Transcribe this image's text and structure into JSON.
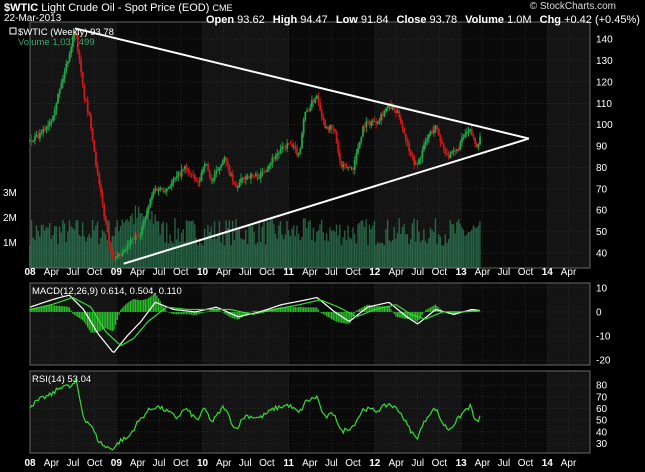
{
  "header": {
    "symbol": "$WTIC",
    "name": "Light Crude Oil - Spot Price (EOD)",
    "exchange": "CME",
    "date": "22-Mar-2013",
    "brand": "© StockCharts.com",
    "ohlc": [
      {
        "label": "Open",
        "value": "93.62"
      },
      {
        "label": "High",
        "value": "94.47"
      },
      {
        "label": "Low",
        "value": "91.84"
      },
      {
        "label": "Close",
        "value": "93.78"
      },
      {
        "label": "Volume",
        "value": "1.0M"
      },
      {
        "label": "Chg",
        "value": "+0.42 (+0.45%)"
      }
    ]
  },
  "colors": {
    "background": "#000000",
    "panel": "#0a0a0a",
    "grid": "#3a3a3a",
    "price_up": "#1fa84a",
    "price_down": "#d01818",
    "volume": "#3aa870",
    "indicator": "#33dd33",
    "trendline": "#ffffff",
    "text": "#ffffff"
  },
  "x_labels": [
    "08",
    "Apr",
    "Jul",
    "Oct",
    "09",
    "Apr",
    "Jul",
    "Oct",
    "10",
    "Apr",
    "Jul",
    "Oct",
    "11",
    "Apr",
    "Jul",
    "Oct",
    "12",
    "Apr",
    "Jul",
    "Oct",
    "13",
    "Apr",
    "Jul",
    "Oct",
    "14",
    "Apr"
  ],
  "chart_data": [
    {
      "panel": "price",
      "type": "candlestick",
      "legend": [
        "$WTIC (Weekly) 93.78",
        "Volume 1,037,499"
      ],
      "ylim": [
        33,
        148
      ],
      "y_ticks": [
        "40",
        "50",
        "60",
        "70",
        "80",
        "90",
        "100",
        "110",
        "120",
        "130",
        "140"
      ],
      "volume_ticks": [
        "1M",
        "2M",
        "3M"
      ],
      "price_path": [
        [
          "2008-01-01",
          92
        ],
        [
          "2008-02-15",
          95
        ],
        [
          "2008-04-01",
          103
        ],
        [
          "2008-05-15",
          120
        ],
        [
          "2008-06-15",
          133
        ],
        [
          "2008-07-10",
          145
        ],
        [
          "2008-08-15",
          115
        ],
        [
          "2008-09-15",
          100
        ],
        [
          "2008-10-15",
          75
        ],
        [
          "2008-11-15",
          55
        ],
        [
          "2008-12-20",
          36
        ],
        [
          "2009-02-01",
          40
        ],
        [
          "2009-03-01",
          45
        ],
        [
          "2009-04-15",
          50
        ],
        [
          "2009-06-10",
          70
        ],
        [
          "2009-08-01",
          70
        ],
        [
          "2009-10-20",
          80
        ],
        [
          "2009-12-15",
          72
        ],
        [
          "2010-01-10",
          83
        ],
        [
          "2010-02-10",
          73
        ],
        [
          "2010-04-01",
          85
        ],
        [
          "2010-05-20",
          70
        ],
        [
          "2010-07-01",
          76
        ],
        [
          "2010-09-01",
          76
        ],
        [
          "2010-11-01",
          85
        ],
        [
          "2010-12-31",
          91
        ],
        [
          "2011-02-15",
          86
        ],
        [
          "2011-03-07",
          104
        ],
        [
          "2011-05-01",
          114
        ],
        [
          "2011-06-01",
          100
        ],
        [
          "2011-07-15",
          97
        ],
        [
          "2011-08-10",
          80
        ],
        [
          "2011-10-01",
          80
        ],
        [
          "2011-11-15",
          100
        ],
        [
          "2012-01-10",
          102
        ],
        [
          "2012-03-01",
          109
        ],
        [
          "2012-04-15",
          104
        ],
        [
          "2012-05-15",
          92
        ],
        [
          "2012-06-25",
          80
        ],
        [
          "2012-08-15",
          95
        ],
        [
          "2012-09-15",
          99
        ],
        [
          "2012-10-15",
          90
        ],
        [
          "2012-11-10",
          85
        ],
        [
          "2012-12-15",
          88
        ],
        [
          "2013-01-15",
          95
        ],
        [
          "2013-02-10",
          97
        ],
        [
          "2013-03-05",
          90
        ],
        [
          "2013-03-22",
          93.78
        ]
      ],
      "trendlines": [
        {
          "from": [
            "2008-07-10",
            145
          ],
          "to": [
            "2013-10-15",
            93.5
          ]
        },
        {
          "from": [
            "2009-02-01",
            35
          ],
          "to": [
            "2013-10-15",
            93.5
          ]
        }
      ]
    },
    {
      "panel": "macd",
      "type": "line",
      "legend": "MACD(12,26,9) 0.614, 0.504, 0.110",
      "ylim": [
        -22,
        12
      ],
      "y_ticks": [
        "-20",
        "-10",
        "0",
        "10"
      ],
      "macd": [
        [
          "2008-01-01",
          2
        ],
        [
          "2008-04-01",
          5
        ],
        [
          "2008-06-15",
          7
        ],
        [
          "2008-08-15",
          1
        ],
        [
          "2008-10-15",
          -9
        ],
        [
          "2008-12-20",
          -17
        ],
        [
          "2009-02-15",
          -10
        ],
        [
          "2009-04-15",
          -4
        ],
        [
          "2009-06-15",
          4
        ],
        [
          "2009-09-01",
          1
        ],
        [
          "2009-12-01",
          0
        ],
        [
          "2010-03-01",
          2
        ],
        [
          "2010-06-01",
          -2
        ],
        [
          "2010-09-01",
          0
        ],
        [
          "2010-12-01",
          3
        ],
        [
          "2011-03-15",
          5
        ],
        [
          "2011-05-01",
          6
        ],
        [
          "2011-07-15",
          0
        ],
        [
          "2011-09-15",
          -4
        ],
        [
          "2011-12-01",
          2
        ],
        [
          "2012-03-01",
          4
        ],
        [
          "2012-05-15",
          -2
        ],
        [
          "2012-07-01",
          -5
        ],
        [
          "2012-09-15",
          1
        ],
        [
          "2012-12-01",
          -1
        ],
        [
          "2013-02-15",
          1
        ],
        [
          "2013-03-22",
          0.6
        ]
      ],
      "signal": [
        [
          "2008-01-01",
          1
        ],
        [
          "2008-04-01",
          3
        ],
        [
          "2008-07-01",
          6
        ],
        [
          "2008-09-15",
          2
        ],
        [
          "2008-11-15",
          -8
        ],
        [
          "2009-01-20",
          -14
        ],
        [
          "2009-03-15",
          -11
        ],
        [
          "2009-05-15",
          -4
        ],
        [
          "2009-08-01",
          2
        ],
        [
          "2009-11-01",
          1
        ],
        [
          "2010-02-01",
          1
        ],
        [
          "2010-05-01",
          1
        ],
        [
          "2010-08-01",
          -1
        ],
        [
          "2010-11-01",
          1
        ],
        [
          "2011-02-15",
          3
        ],
        [
          "2011-05-15",
          5
        ],
        [
          "2011-08-01",
          2
        ],
        [
          "2011-10-15",
          -2
        ],
        [
          "2012-01-01",
          1
        ],
        [
          "2012-04-01",
          3
        ],
        [
          "2012-06-01",
          -1
        ],
        [
          "2012-08-01",
          -3
        ],
        [
          "2012-10-15",
          0
        ],
        [
          "2013-01-01",
          0
        ],
        [
          "2013-03-22",
          0.5
        ]
      ]
    },
    {
      "panel": "rsi",
      "type": "line",
      "legend": "RSI(14) 53.04",
      "ylim": [
        22,
        92
      ],
      "y_ticks": [
        "30",
        "40",
        "50",
        "60",
        "70",
        "80"
      ],
      "rsi": [
        [
          "2008-01-01",
          62
        ],
        [
          "2008-02-15",
          68
        ],
        [
          "2008-04-01",
          72
        ],
        [
          "2008-05-20",
          80
        ],
        [
          "2008-06-20",
          78
        ],
        [
          "2008-07-15",
          83
        ],
        [
          "2008-08-15",
          52
        ],
        [
          "2008-09-15",
          46
        ],
        [
          "2008-10-15",
          33
        ],
        [
          "2008-11-15",
          27
        ],
        [
          "2008-12-20",
          26
        ],
        [
          "2009-01-20",
          33
        ],
        [
          "2009-02-20",
          35
        ],
        [
          "2009-04-01",
          48
        ],
        [
          "2009-05-15",
          58
        ],
        [
          "2009-06-20",
          62
        ],
        [
          "2009-08-01",
          58
        ],
        [
          "2009-09-15",
          52
        ],
        [
          "2009-10-20",
          60
        ],
        [
          "2009-12-10",
          50
        ],
        [
          "2010-01-10",
          60
        ],
        [
          "2010-02-10",
          48
        ],
        [
          "2010-04-01",
          62
        ],
        [
          "2010-05-20",
          42
        ],
        [
          "2010-07-01",
          54
        ],
        [
          "2010-09-01",
          52
        ],
        [
          "2010-11-01",
          60
        ],
        [
          "2010-12-31",
          63
        ],
        [
          "2011-02-15",
          56
        ],
        [
          "2011-03-15",
          66
        ],
        [
          "2011-05-01",
          70
        ],
        [
          "2011-06-01",
          52
        ],
        [
          "2011-07-15",
          56
        ],
        [
          "2011-08-10",
          40
        ],
        [
          "2011-10-01",
          45
        ],
        [
          "2011-11-15",
          60
        ],
        [
          "2012-01-10",
          58
        ],
        [
          "2012-03-01",
          64
        ],
        [
          "2012-04-15",
          58
        ],
        [
          "2012-05-20",
          45
        ],
        [
          "2012-06-25",
          34
        ],
        [
          "2012-08-15",
          55
        ],
        [
          "2012-09-15",
          60
        ],
        [
          "2012-10-15",
          47
        ],
        [
          "2012-11-10",
          42
        ],
        [
          "2012-12-15",
          50
        ],
        [
          "2013-01-15",
          58
        ],
        [
          "2013-02-10",
          62
        ],
        [
          "2013-03-05",
          47
        ],
        [
          "2013-03-22",
          53
        ]
      ]
    }
  ]
}
